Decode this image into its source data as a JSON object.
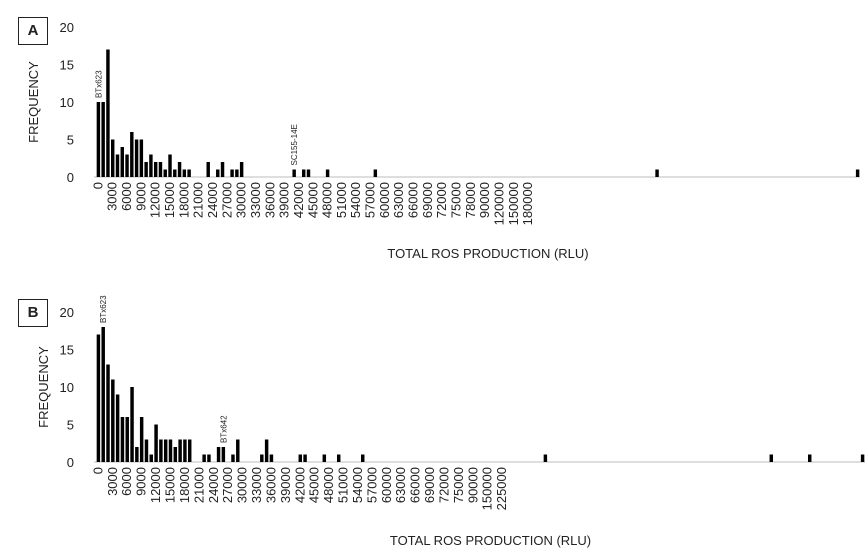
{
  "chart_data": [
    {
      "panel": "A",
      "type": "bar",
      "xlabel": "TOTAL ROS PRODUCTION (RLU)",
      "ylabel": "FREQUENCY",
      "ylim": [
        0,
        20
      ],
      "yticks": [
        0,
        5,
        10,
        15,
        20
      ],
      "grid": false,
      "xtick_labels": [
        "0",
        "3000",
        "6000",
        "9000",
        "12000",
        "15000",
        "18000",
        "21000",
        "24000",
        "27000",
        "30000",
        "33000",
        "36000",
        "39000",
        "42000",
        "45000",
        "48000",
        "51000",
        "54000",
        "57000",
        "60000",
        "63000",
        "66000",
        "69000",
        "72000",
        "75000",
        "78000",
        "90000",
        "120000",
        "150000",
        "180000"
      ],
      "values": [
        10,
        10,
        17,
        5,
        3,
        4,
        3,
        6,
        5,
        5,
        2,
        3,
        2,
        2,
        1,
        3,
        1,
        2,
        1,
        1,
        0,
        0,
        0,
        2,
        0,
        1,
        2,
        0,
        1,
        1,
        2,
        0,
        0,
        0,
        0,
        0,
        0,
        0,
        0,
        0,
        0,
        1,
        0,
        1,
        1,
        0,
        0,
        0,
        1,
        0,
        0,
        0,
        0,
        0,
        0,
        0,
        0,
        0,
        1,
        0,
        0,
        0,
        0,
        0,
        0,
        0,
        0,
        0,
        0,
        0,
        0,
        0,
        0,
        0,
        0,
        0,
        0,
        0,
        0,
        0,
        0,
        0,
        0,
        0,
        0,
        0,
        0,
        0,
        0,
        0,
        0,
        0,
        0,
        0,
        0,
        0,
        0,
        0,
        0,
        0,
        0,
        0,
        0,
        0,
        0,
        0,
        0,
        0,
        0,
        0,
        0,
        0,
        0,
        0,
        0,
        0,
        0,
        1,
        0,
        0,
        0,
        0,
        0,
        0,
        0,
        0,
        0,
        0,
        0,
        0,
        0,
        0,
        0,
        0,
        0,
        0,
        0,
        0,
        0,
        0,
        0,
        0,
        0,
        0,
        0,
        0,
        0,
        0,
        0,
        0,
        0,
        0,
        0,
        0,
        0,
        0,
        0,
        0,
        0,
        1
      ],
      "annotations": [
        {
          "text": "BTx623",
          "bin": 0
        },
        {
          "text": "SC155-14E",
          "bin": 41
        }
      ]
    },
    {
      "panel": "B",
      "type": "bar",
      "xlabel": "TOTAL ROS PRODUCTION (RLU)",
      "ylabel": "FREQUENCY",
      "ylim": [
        0,
        20
      ],
      "yticks": [
        0,
        5,
        10,
        15,
        20
      ],
      "grid": false,
      "xtick_labels": [
        "0",
        "3000",
        "6000",
        "9000",
        "12000",
        "15000",
        "18000",
        "21000",
        "24000",
        "27000",
        "30000",
        "33000",
        "36000",
        "39000",
        "42000",
        "45000",
        "48000",
        "51000",
        "54000",
        "57000",
        "60000",
        "63000",
        "66000",
        "69000",
        "72000",
        "75000",
        "90000",
        "150000",
        "225000"
      ],
      "values": [
        17,
        18,
        13,
        11,
        9,
        6,
        6,
        10,
        2,
        6,
        3,
        1,
        5,
        3,
        3,
        3,
        2,
        3,
        3,
        3,
        0,
        0,
        1,
        1,
        0,
        2,
        2,
        0,
        1,
        3,
        0,
        0,
        0,
        0,
        1,
        3,
        1,
        0,
        0,
        0,
        0,
        0,
        1,
        1,
        0,
        0,
        0,
        1,
        0,
        0,
        1,
        0,
        0,
        0,
        0,
        1,
        0,
        0,
        0,
        0,
        0,
        0,
        0,
        0,
        0,
        0,
        0,
        0,
        0,
        0,
        0,
        0,
        0,
        0,
        0,
        0,
        0,
        0,
        0,
        0,
        0,
        0,
        0,
        0,
        0,
        0,
        0,
        0,
        0,
        0,
        0,
        0,
        0,
        1,
        0,
        0,
        0,
        0,
        0,
        0,
        0,
        0,
        0,
        0,
        0,
        0,
        0,
        0,
        0,
        0,
        0,
        0,
        0,
        0,
        0,
        0,
        0,
        0,
        0,
        0,
        0,
        0,
        0,
        0,
        0,
        0,
        0,
        0,
        0,
        0,
        0,
        0,
        0,
        0,
        0,
        0,
        0,
        0,
        0,
        0,
        1,
        0,
        0,
        0,
        0,
        0,
        0,
        0,
        1,
        0,
        0,
        0,
        0,
        0,
        0,
        0,
        0,
        0,
        0,
        1
      ],
      "annotations": [
        {
          "text": "BTx623",
          "bin": 1
        },
        {
          "text": "BTx642",
          "bin": 26
        }
      ]
    }
  ]
}
